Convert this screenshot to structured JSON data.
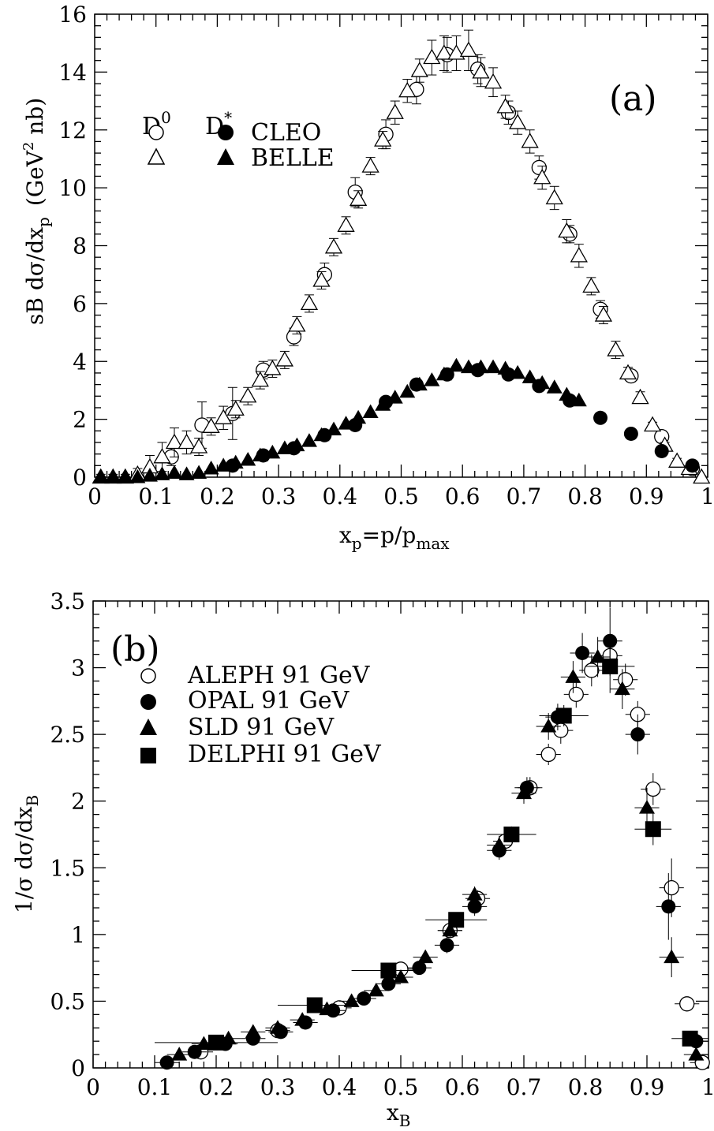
{
  "chart_data": [
    {
      "type": "scatter",
      "panel_label": "(a)",
      "xlabel": "x_p=p/p_max",
      "ylabel": "sB dσ/dx_p (GeV^2 nb)",
      "xlim": [
        0,
        1
      ],
      "ylim": [
        0,
        16
      ],
      "xticks": [
        0,
        0.1,
        0.2,
        0.3,
        0.4,
        0.5,
        0.6,
        0.7,
        0.8,
        0.9,
        1
      ],
      "xtick_labels": [
        "0",
        "0.1",
        "0.2",
        "0.3",
        "0.4",
        "0.5",
        "0.6",
        "0.7",
        "0.8",
        "0.9",
        "1"
      ],
      "yticks": [
        0,
        2,
        4,
        6,
        8,
        10,
        12,
        14,
        16
      ],
      "ytick_labels": [
        "0",
        "2",
        "4",
        "6",
        "8",
        "10",
        "12",
        "14",
        "16"
      ],
      "legend": {
        "placement": "top-left",
        "column_headers": [
          "D",
          "D"
        ],
        "column_header_sups": [
          "0",
          "*"
        ],
        "rows": [
          "CLEO",
          "BELLE"
        ]
      },
      "series": [
        {
          "name": "D0 CLEO",
          "marker": "circle-open",
          "x": [
            0.125,
            0.175,
            0.225,
            0.275,
            0.325,
            0.375,
            0.425,
            0.475,
            0.525,
            0.575,
            0.625,
            0.675,
            0.725,
            0.775,
            0.825,
            0.875,
            0.925,
            0.975
          ],
          "y": [
            0.7,
            1.8,
            2.2,
            3.7,
            4.85,
            7.0,
            9.85,
            11.85,
            13.4,
            14.6,
            14.1,
            12.6,
            10.7,
            8.4,
            5.8,
            3.5,
            1.4,
            0.3
          ],
          "err": [
            0.3,
            0.8,
            0.9,
            0.3,
            0.3,
            0.4,
            0.5,
            0.5,
            0.5,
            0.6,
            0.5,
            0.4,
            0.4,
            0.3,
            0.3,
            0.2,
            0.2,
            0.1
          ]
        },
        {
          "name": "D0 BELLE",
          "marker": "triangle-open",
          "x": [
            0.01,
            0.03,
            0.05,
            0.07,
            0.09,
            0.11,
            0.13,
            0.15,
            0.17,
            0.19,
            0.21,
            0.23,
            0.25,
            0.27,
            0.29,
            0.31,
            0.33,
            0.35,
            0.37,
            0.39,
            0.41,
            0.43,
            0.45,
            0.47,
            0.49,
            0.51,
            0.53,
            0.55,
            0.57,
            0.59,
            0.61,
            0.63,
            0.65,
            0.67,
            0.69,
            0.71,
            0.73,
            0.75,
            0.77,
            0.79,
            0.81,
            0.83,
            0.85,
            0.87,
            0.89,
            0.91,
            0.93,
            0.95,
            0.97,
            0.99
          ],
          "y": [
            0.0,
            0.0,
            0.0,
            0.1,
            0.35,
            0.7,
            1.2,
            1.2,
            1.05,
            1.75,
            2.05,
            2.35,
            2.8,
            3.35,
            3.75,
            4.05,
            5.25,
            6.0,
            6.8,
            7.95,
            8.7,
            9.6,
            10.75,
            11.65,
            12.6,
            13.35,
            14.05,
            14.5,
            14.65,
            14.65,
            14.75,
            14.0,
            13.65,
            12.8,
            12.25,
            11.6,
            10.35,
            9.65,
            8.5,
            7.65,
            6.6,
            5.6,
            4.4,
            3.6,
            2.75,
            1.8,
            1.1,
            0.55,
            0.3,
            0.0
          ],
          "err": [
            0.1,
            0.1,
            0.1,
            0.2,
            0.4,
            0.5,
            0.5,
            0.4,
            0.3,
            0.3,
            0.4,
            0.3,
            0.3,
            0.3,
            0.3,
            0.3,
            0.3,
            0.3,
            0.3,
            0.3,
            0.3,
            0.3,
            0.3,
            0.3,
            0.4,
            0.4,
            0.4,
            0.6,
            0.6,
            0.6,
            0.7,
            0.5,
            0.5,
            0.4,
            0.4,
            0.4,
            0.4,
            0.4,
            0.4,
            0.4,
            0.3,
            0.3,
            0.3,
            0.2,
            0.2,
            0.1,
            0.1,
            0.1,
            0.1,
            0.05
          ]
        },
        {
          "name": "D* CLEO",
          "marker": "circle-filled",
          "x": [
            0.225,
            0.275,
            0.325,
            0.375,
            0.425,
            0.475,
            0.525,
            0.575,
            0.625,
            0.675,
            0.725,
            0.775,
            0.825,
            0.875,
            0.925,
            0.975
          ],
          "y": [
            0.4,
            0.75,
            1.0,
            1.45,
            1.8,
            2.6,
            3.2,
            3.55,
            3.7,
            3.55,
            3.15,
            2.65,
            2.05,
            1.5,
            0.9,
            0.4
          ]
        },
        {
          "name": "D* BELLE",
          "marker": "triangle-filled",
          "x": [
            0.01,
            0.03,
            0.05,
            0.07,
            0.09,
            0.11,
            0.13,
            0.15,
            0.17,
            0.19,
            0.21,
            0.23,
            0.25,
            0.27,
            0.29,
            0.31,
            0.33,
            0.35,
            0.37,
            0.39,
            0.41,
            0.43,
            0.45,
            0.47,
            0.49,
            0.51,
            0.53,
            0.55,
            0.57,
            0.59,
            0.61,
            0.63,
            0.65,
            0.67,
            0.69,
            0.71,
            0.73,
            0.75,
            0.77,
            0.79
          ],
          "y": [
            0.0,
            0.0,
            0.0,
            0.0,
            0.05,
            0.1,
            0.15,
            0.1,
            0.15,
            0.3,
            0.4,
            0.5,
            0.6,
            0.75,
            0.85,
            1.0,
            1.1,
            1.25,
            1.45,
            1.65,
            1.85,
            2.05,
            2.25,
            2.5,
            2.75,
            2.95,
            3.2,
            3.35,
            3.55,
            3.85,
            3.8,
            3.8,
            3.8,
            3.75,
            3.6,
            3.45,
            3.25,
            3.1,
            2.85,
            2.65
          ]
        }
      ]
    },
    {
      "type": "scatter",
      "panel_label": "(b)",
      "xlabel": "x_B",
      "ylabel": "1/σ dσ/dx_B",
      "xlim": [
        0,
        1
      ],
      "ylim": [
        0,
        3.5
      ],
      "xticks": [
        0,
        0.1,
        0.2,
        0.3,
        0.4,
        0.5,
        0.6,
        0.7,
        0.8,
        0.9,
        1
      ],
      "xtick_labels": [
        "0",
        "0.1",
        "0.2",
        "0.3",
        "0.4",
        "0.5",
        "0.6",
        "0.7",
        "0.8",
        "0.9",
        "1"
      ],
      "yticks": [
        0,
        0.5,
        1,
        1.5,
        2,
        2.5,
        3,
        3.5
      ],
      "ytick_labels": [
        "0",
        "0.5",
        "1",
        "1.5",
        "2",
        "2.5",
        "3",
        "3.5"
      ],
      "legend": {
        "placement": "top-left"
      },
      "series": [
        {
          "name": "ALEPH 91 GeV",
          "marker": "circle-open",
          "x": [
            0.175,
            0.3,
            0.4,
            0.5,
            0.58,
            0.625,
            0.67,
            0.71,
            0.74,
            0.76,
            0.785,
            0.81,
            0.84,
            0.865,
            0.885,
            0.91,
            0.94,
            0.965,
            0.99
          ],
          "y": [
            0.12,
            0.28,
            0.45,
            0.74,
            1.03,
            1.27,
            1.7,
            2.1,
            2.35,
            2.53,
            2.8,
            2.98,
            3.09,
            2.91,
            2.65,
            2.09,
            1.35,
            0.48,
            0.04
          ],
          "err": [
            0.03,
            0.03,
            0.03,
            0.05,
            0.05,
            0.06,
            0.07,
            0.08,
            0.08,
            0.1,
            0.1,
            0.12,
            0.15,
            0.12,
            0.1,
            0.12,
            0.22,
            0.05,
            0.03
          ]
        },
        {
          "name": "OPAL 91 GeV",
          "marker": "circle-filled",
          "x": [
            0.12,
            0.165,
            0.215,
            0.26,
            0.305,
            0.345,
            0.39,
            0.44,
            0.48,
            0.53,
            0.575,
            0.62,
            0.66,
            0.705,
            0.755,
            0.795,
            0.84,
            0.885,
            0.935,
            0.98
          ],
          "y": [
            0.04,
            0.12,
            0.18,
            0.22,
            0.27,
            0.34,
            0.43,
            0.52,
            0.63,
            0.75,
            0.92,
            1.21,
            1.63,
            2.1,
            2.63,
            3.11,
            3.2,
            2.5,
            1.21,
            0.2
          ],
          "err": [
            0.03,
            0.03,
            0.03,
            0.03,
            0.03,
            0.03,
            0.03,
            0.04,
            0.04,
            0.05,
            0.06,
            0.07,
            0.07,
            0.08,
            0.1,
            0.15,
            0.25,
            0.15,
            0.25,
            0.06
          ]
        },
        {
          "name": "SLD 91 GeV",
          "marker": "triangle-filled",
          "x": [
            0.14,
            0.18,
            0.22,
            0.26,
            0.3,
            0.34,
            0.38,
            0.42,
            0.46,
            0.5,
            0.54,
            0.58,
            0.62,
            0.66,
            0.7,
            0.74,
            0.78,
            0.82,
            0.86,
            0.9,
            0.94,
            0.98
          ],
          "y": [
            0.1,
            0.18,
            0.22,
            0.27,
            0.3,
            0.36,
            0.44,
            0.5,
            0.58,
            0.68,
            0.83,
            1.03,
            1.3,
            1.67,
            2.06,
            2.56,
            2.93,
            3.08,
            2.84,
            1.95,
            0.83,
            0.1
          ],
          "err": [
            0.02,
            0.02,
            0.02,
            0.02,
            0.02,
            0.03,
            0.03,
            0.03,
            0.03,
            0.04,
            0.04,
            0.05,
            0.06,
            0.07,
            0.08,
            0.1,
            0.12,
            0.15,
            0.15,
            0.15,
            0.15,
            0.05
          ]
        },
        {
          "name": "DELPHI 91 GeV",
          "marker": "square-filled",
          "x": [
            0.2,
            0.36,
            0.48,
            0.59,
            0.68,
            0.765,
            0.84,
            0.91,
            0.97
          ],
          "y": [
            0.19,
            0.47,
            0.73,
            1.11,
            1.75,
            2.64,
            3.01,
            1.79,
            0.22
          ],
          "err": [
            0.03,
            0.03,
            0.04,
            0.05,
            0.06,
            0.08,
            0.2,
            0.12,
            0.03
          ],
          "xerr": [
            0.1,
            0.06,
            0.06,
            0.05,
            0.04,
            0.04,
            0.04,
            0.03,
            0.03
          ]
        }
      ]
    }
  ]
}
